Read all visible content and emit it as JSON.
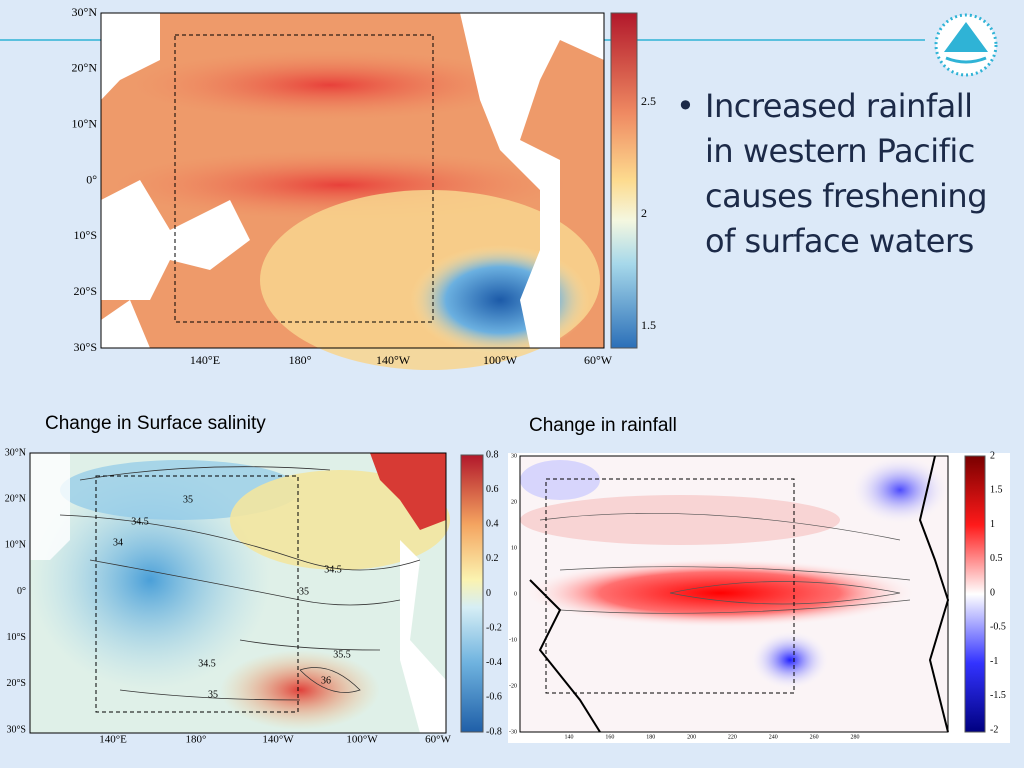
{
  "bullet": "Increased rainfall in western Pacific causes freshening of surface waters",
  "top_map": {
    "y_labels": [
      "30°N",
      "20°N",
      "10°N",
      "0°",
      "10°S",
      "20°S",
      "30°S"
    ],
    "x_labels": [
      "140°E",
      "180°",
      "140°W",
      "100°W",
      "60°W"
    ],
    "colorbar_labels": [
      "2.5",
      "2",
      "1.5"
    ]
  },
  "salinity_map": {
    "caption": "Change in Surface salinity",
    "y_labels": [
      "30°N",
      "20°N",
      "10°N",
      "0°",
      "10°S",
      "20°S",
      "30°S"
    ],
    "x_labels": [
      "140°E",
      "180°",
      "140°W",
      "100°W",
      "60°W"
    ],
    "colorbar_labels": [
      "0.8",
      "0.6",
      "0.4",
      "0.2",
      "0",
      "-0.2",
      "-0.4",
      "-0.6",
      "-0.8"
    ],
    "contour_labels": [
      "35",
      "34.5",
      "34",
      "34.5",
      "35",
      "35.5",
      "36",
      "34.5",
      "35"
    ]
  },
  "rainfall_map": {
    "caption": "Change in rainfall",
    "y_labels": [
      "30",
      "20",
      "10",
      "0",
      "-10",
      "-20",
      "-30"
    ],
    "x_labels": [
      "140",
      "160",
      "180",
      "200",
      "220",
      "240",
      "260",
      "280"
    ],
    "colorbar_labels": [
      "2",
      "1.5",
      "1",
      "0.5",
      "0",
      "-0.5",
      "-1",
      "-1.5",
      "-2"
    ]
  }
}
